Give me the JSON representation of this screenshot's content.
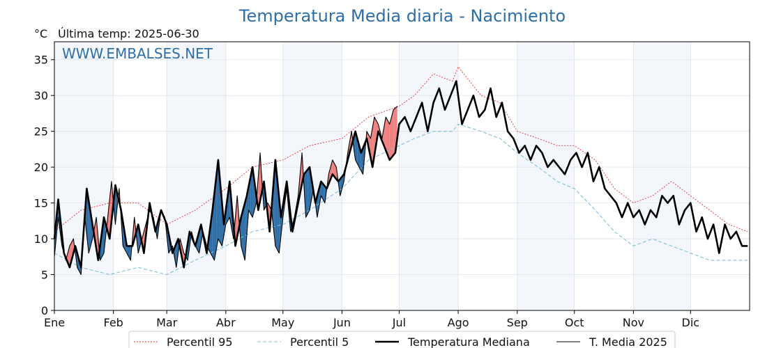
{
  "colors": {
    "title": "#2e6ea6",
    "shade": "#f3f7fc",
    "grid": "#dde3ea",
    "above": "#f08080",
    "below": "#2e6ea6",
    "p95": "#e03030",
    "p5": "#7fbfd8",
    "median": "#000000",
    "current": "#000000"
  },
  "header": {
    "title": "Temperatura Media diaria - Nacimiento",
    "unit": "°C",
    "last_reading": "Última temp: 2025-06-30"
  },
  "watermark": "WWW.EMBALSES.NET",
  "chart_data": {
    "type": "line",
    "title": "Temperatura Media diaria - Nacimiento",
    "ylabel": "°C",
    "ylim": [
      0,
      37.5
    ],
    "xlim": [
      1,
      365
    ],
    "y_ticks": [
      0,
      5,
      10,
      15,
      20,
      25,
      30,
      35
    ],
    "months": [
      {
        "label": "Ene",
        "start_day": 1
      },
      {
        "label": "Feb",
        "start_day": 32
      },
      {
        "label": "Mar",
        "start_day": 60
      },
      {
        "label": "Abr",
        "start_day": 91
      },
      {
        "label": "May",
        "start_day": 121
      },
      {
        "label": "Jun",
        "start_day": 152
      },
      {
        "label": "Jul",
        "start_day": 182
      },
      {
        "label": "Ago",
        "start_day": 213
      },
      {
        "label": "Sep",
        "start_day": 244
      },
      {
        "label": "Oct",
        "start_day": 274
      },
      {
        "label": "Nov",
        "start_day": 305
      },
      {
        "label": "Dic",
        "start_day": 335
      }
    ],
    "legend_position": "bottom",
    "grid": true,
    "series": [
      {
        "name": "Percentil 95",
        "style": "dotted-red",
        "points": [
          [
            1,
            11
          ],
          [
            15,
            14
          ],
          [
            30,
            15
          ],
          [
            45,
            15
          ],
          [
            60,
            12
          ],
          [
            75,
            14
          ],
          [
            91,
            17
          ],
          [
            105,
            20
          ],
          [
            121,
            21
          ],
          [
            135,
            23
          ],
          [
            152,
            24
          ],
          [
            166,
            27
          ],
          [
            182,
            28.5
          ],
          [
            190,
            30
          ],
          [
            200,
            33
          ],
          [
            210,
            32
          ],
          [
            213,
            34
          ],
          [
            225,
            30
          ],
          [
            235,
            29
          ],
          [
            244,
            25
          ],
          [
            255,
            24
          ],
          [
            265,
            23
          ],
          [
            274,
            23
          ],
          [
            285,
            21
          ],
          [
            295,
            17
          ],
          [
            305,
            15
          ],
          [
            315,
            16
          ],
          [
            325,
            18
          ],
          [
            335,
            16
          ],
          [
            345,
            14
          ],
          [
            355,
            12
          ],
          [
            365,
            11
          ]
        ]
      },
      {
        "name": "Percentil 5",
        "style": "dashed-lightblue",
        "points": [
          [
            1,
            8
          ],
          [
            15,
            6
          ],
          [
            30,
            5
          ],
          [
            45,
            6
          ],
          [
            60,
            5
          ],
          [
            75,
            7
          ],
          [
            91,
            9
          ],
          [
            105,
            11
          ],
          [
            121,
            12
          ],
          [
            135,
            14
          ],
          [
            152,
            17
          ],
          [
            166,
            21
          ],
          [
            182,
            23
          ],
          [
            190,
            24
          ],
          [
            200,
            25
          ],
          [
            210,
            25
          ],
          [
            213,
            26
          ],
          [
            225,
            25
          ],
          [
            235,
            24
          ],
          [
            244,
            22
          ],
          [
            255,
            20
          ],
          [
            265,
            18
          ],
          [
            274,
            17
          ],
          [
            285,
            14
          ],
          [
            295,
            11
          ],
          [
            305,
            9
          ],
          [
            315,
            10
          ],
          [
            325,
            9
          ],
          [
            335,
            8
          ],
          [
            345,
            7
          ],
          [
            355,
            7
          ],
          [
            365,
            7
          ]
        ]
      },
      {
        "name": "Temperatura Mediana",
        "style": "thick-black",
        "points": [
          [
            1,
            10
          ],
          [
            3,
            15.5
          ],
          [
            6,
            8
          ],
          [
            9,
            6
          ],
          [
            12,
            9
          ],
          [
            15,
            6
          ],
          [
            18,
            17
          ],
          [
            21,
            12
          ],
          [
            24,
            7
          ],
          [
            27,
            13
          ],
          [
            30,
            10
          ],
          [
            33,
            17.5
          ],
          [
            36,
            14
          ],
          [
            39,
            9
          ],
          [
            42,
            9
          ],
          [
            45,
            12
          ],
          [
            48,
            8
          ],
          [
            51,
            15
          ],
          [
            54,
            11
          ],
          [
            57,
            14
          ],
          [
            60,
            12
          ],
          [
            63,
            8
          ],
          [
            66,
            10
          ],
          [
            69,
            6
          ],
          [
            72,
            11
          ],
          [
            75,
            9
          ],
          [
            78,
            12
          ],
          [
            81,
            8
          ],
          [
            84,
            14
          ],
          [
            87,
            21
          ],
          [
            90,
            12
          ],
          [
            93,
            18
          ],
          [
            96,
            9
          ],
          [
            99,
            13
          ],
          [
            102,
            16
          ],
          [
            105,
            20
          ],
          [
            108,
            14
          ],
          [
            111,
            18
          ],
          [
            114,
            11
          ],
          [
            117,
            21
          ],
          [
            120,
            13
          ],
          [
            123,
            18
          ],
          [
            126,
            11
          ],
          [
            129,
            15
          ],
          [
            132,
            19
          ],
          [
            135,
            20
          ],
          [
            138,
            15
          ],
          [
            141,
            18
          ],
          [
            144,
            17
          ],
          [
            147,
            19
          ],
          [
            150,
            18
          ],
          [
            153,
            19
          ],
          [
            156,
            22
          ],
          [
            159,
            25
          ],
          [
            162,
            22
          ],
          [
            165,
            24
          ],
          [
            168,
            20
          ],
          [
            171,
            25
          ],
          [
            174,
            23
          ],
          [
            177,
            21
          ],
          [
            180,
            22
          ],
          [
            182,
            26
          ],
          [
            185,
            27
          ],
          [
            188,
            25
          ],
          [
            191,
            27
          ],
          [
            194,
            29
          ],
          [
            197,
            25
          ],
          [
            200,
            29
          ],
          [
            203,
            31
          ],
          [
            206,
            28
          ],
          [
            209,
            30
          ],
          [
            212,
            32
          ],
          [
            215,
            26
          ],
          [
            218,
            28
          ],
          [
            221,
            30
          ],
          [
            224,
            27
          ],
          [
            227,
            28
          ],
          [
            230,
            31
          ],
          [
            233,
            27
          ],
          [
            236,
            29
          ],
          [
            239,
            25
          ],
          [
            242,
            24
          ],
          [
            245,
            22
          ],
          [
            248,
            23
          ],
          [
            251,
            21
          ],
          [
            254,
            23
          ],
          [
            257,
            22
          ],
          [
            260,
            20
          ],
          [
            263,
            21
          ],
          [
            266,
            20
          ],
          [
            269,
            19
          ],
          [
            272,
            21
          ],
          [
            275,
            22
          ],
          [
            278,
            20
          ],
          [
            281,
            22
          ],
          [
            284,
            18
          ],
          [
            287,
            20
          ],
          [
            290,
            17
          ],
          [
            293,
            16
          ],
          [
            296,
            15
          ],
          [
            299,
            13
          ],
          [
            302,
            15
          ],
          [
            305,
            13
          ],
          [
            308,
            14
          ],
          [
            311,
            12
          ],
          [
            314,
            14
          ],
          [
            317,
            13
          ],
          [
            320,
            16
          ],
          [
            323,
            15
          ],
          [
            326,
            16
          ],
          [
            329,
            12
          ],
          [
            332,
            14
          ],
          [
            335,
            15
          ],
          [
            338,
            11
          ],
          [
            341,
            13
          ],
          [
            344,
            10
          ],
          [
            347,
            12
          ],
          [
            350,
            8
          ],
          [
            353,
            12
          ],
          [
            356,
            10
          ],
          [
            359,
            11
          ],
          [
            362,
            9
          ],
          [
            365,
            9
          ]
        ]
      },
      {
        "name": "T. Media 2025",
        "style": "thin-black",
        "points": [
          [
            1,
            7.5
          ],
          [
            3,
            13
          ],
          [
            5,
            9
          ],
          [
            7,
            7
          ],
          [
            9,
            9
          ],
          [
            11,
            10
          ],
          [
            13,
            6
          ],
          [
            15,
            5
          ],
          [
            17,
            13
          ],
          [
            19,
            8
          ],
          [
            21,
            10
          ],
          [
            23,
            13
          ],
          [
            25,
            7
          ],
          [
            27,
            8
          ],
          [
            29,
            13
          ],
          [
            31,
            18
          ],
          [
            33,
            12
          ],
          [
            35,
            17
          ],
          [
            37,
            9
          ],
          [
            39,
            8
          ],
          [
            41,
            7
          ],
          [
            43,
            13
          ],
          [
            45,
            8
          ],
          [
            47,
            10
          ],
          [
            49,
            12
          ],
          [
            51,
            14
          ],
          [
            53,
            13
          ],
          [
            55,
            10
          ],
          [
            57,
            14
          ],
          [
            59,
            13
          ],
          [
            61,
            8
          ],
          [
            63,
            9
          ],
          [
            65,
            6
          ],
          [
            67,
            10
          ],
          [
            69,
            8
          ],
          [
            71,
            7
          ],
          [
            73,
            11
          ],
          [
            75,
            9
          ],
          [
            77,
            8
          ],
          [
            79,
            11
          ],
          [
            81,
            9
          ],
          [
            83,
            8
          ],
          [
            85,
            7
          ],
          [
            87,
            10
          ],
          [
            89,
            9
          ],
          [
            91,
            12
          ],
          [
            93,
            13
          ],
          [
            95,
            10
          ],
          [
            97,
            16
          ],
          [
            99,
            9
          ],
          [
            101,
            7
          ],
          [
            103,
            14
          ],
          [
            105,
            13
          ],
          [
            107,
            15
          ],
          [
            109,
            22
          ],
          [
            111,
            14
          ],
          [
            113,
            15
          ],
          [
            115,
            14
          ],
          [
            117,
            9
          ],
          [
            119,
            8
          ],
          [
            121,
            13
          ],
          [
            123,
            17
          ],
          [
            125,
            11
          ],
          [
            127,
            13
          ],
          [
            129,
            16
          ],
          [
            131,
            22
          ],
          [
            133,
            13
          ],
          [
            135,
            14
          ],
          [
            137,
            17
          ],
          [
            139,
            13
          ],
          [
            141,
            16
          ],
          [
            143,
            15
          ],
          [
            145,
            19
          ],
          [
            147,
            21
          ],
          [
            149,
            20
          ],
          [
            151,
            16
          ],
          [
            153,
            18
          ],
          [
            155,
            22
          ],
          [
            157,
            25
          ],
          [
            159,
            21
          ],
          [
            161,
            20
          ],
          [
            163,
            19
          ],
          [
            165,
            25
          ],
          [
            167,
            24
          ],
          [
            169,
            27
          ],
          [
            171,
            26
          ],
          [
            173,
            24
          ],
          [
            175,
            27
          ],
          [
            177,
            26
          ],
          [
            179,
            28
          ],
          [
            181,
            28.5
          ]
        ]
      }
    ]
  }
}
